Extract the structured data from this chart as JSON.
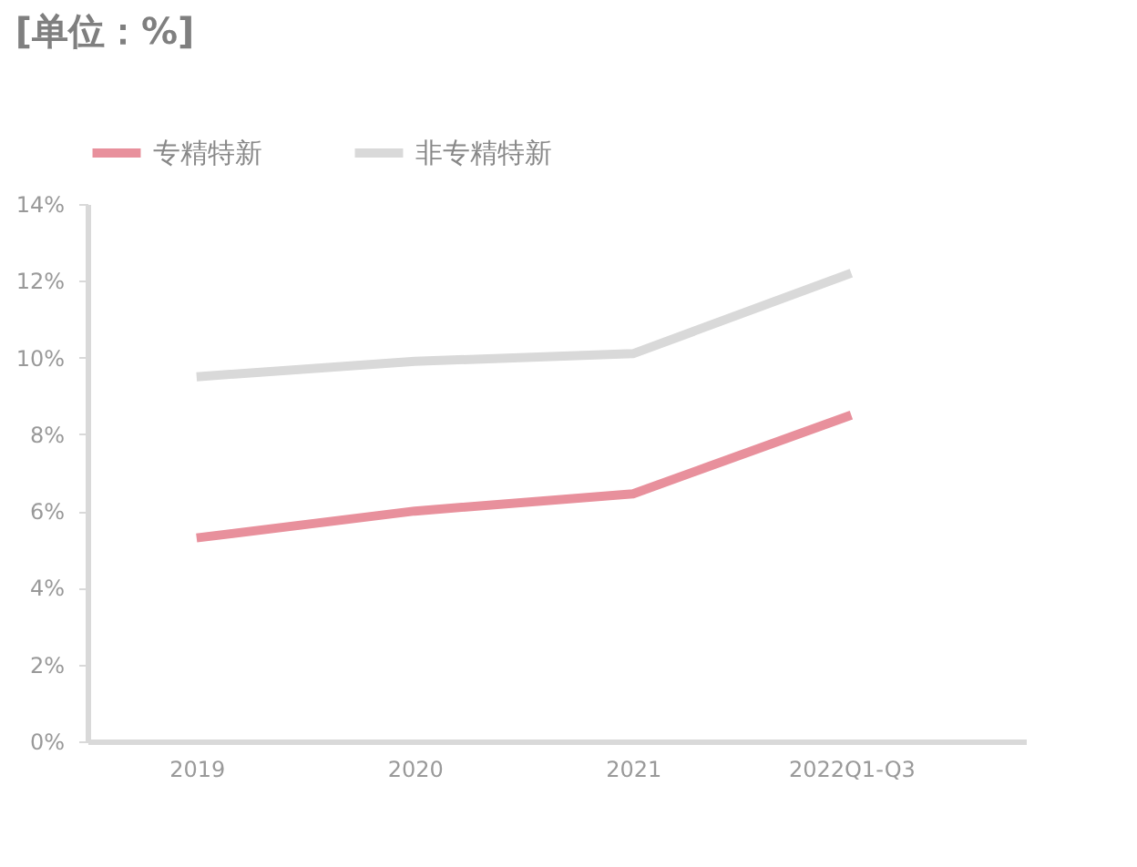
{
  "chart_data": {
    "type": "line",
    "title": "[单位：%]",
    "categories": [
      "2019",
      "2020",
      "2021",
      "2022Q1-Q3"
    ],
    "series": [
      {
        "name": "专精特新",
        "color": "#e8909c",
        "values": [
          5.3,
          6.0,
          6.45,
          8.5
        ]
      },
      {
        "name": "非专精特新",
        "color": "#d9d9d9",
        "values": [
          9.5,
          9.9,
          10.1,
          12.2
        ]
      }
    ],
    "ylim": [
      0,
      14
    ],
    "yticks": [
      {
        "value": 0,
        "label": "0%"
      },
      {
        "value": 2,
        "label": "2%"
      },
      {
        "value": 4,
        "label": "4%"
      },
      {
        "value": 6,
        "label": "6%"
      },
      {
        "value": 8,
        "label": "8%"
      },
      {
        "value": 10,
        "label": "10%"
      },
      {
        "value": 12,
        "label": "12%"
      },
      {
        "value": 14,
        "label": "14%"
      }
    ],
    "legend": "top",
    "grid": false,
    "marker": "none",
    "line_style": "solid"
  }
}
